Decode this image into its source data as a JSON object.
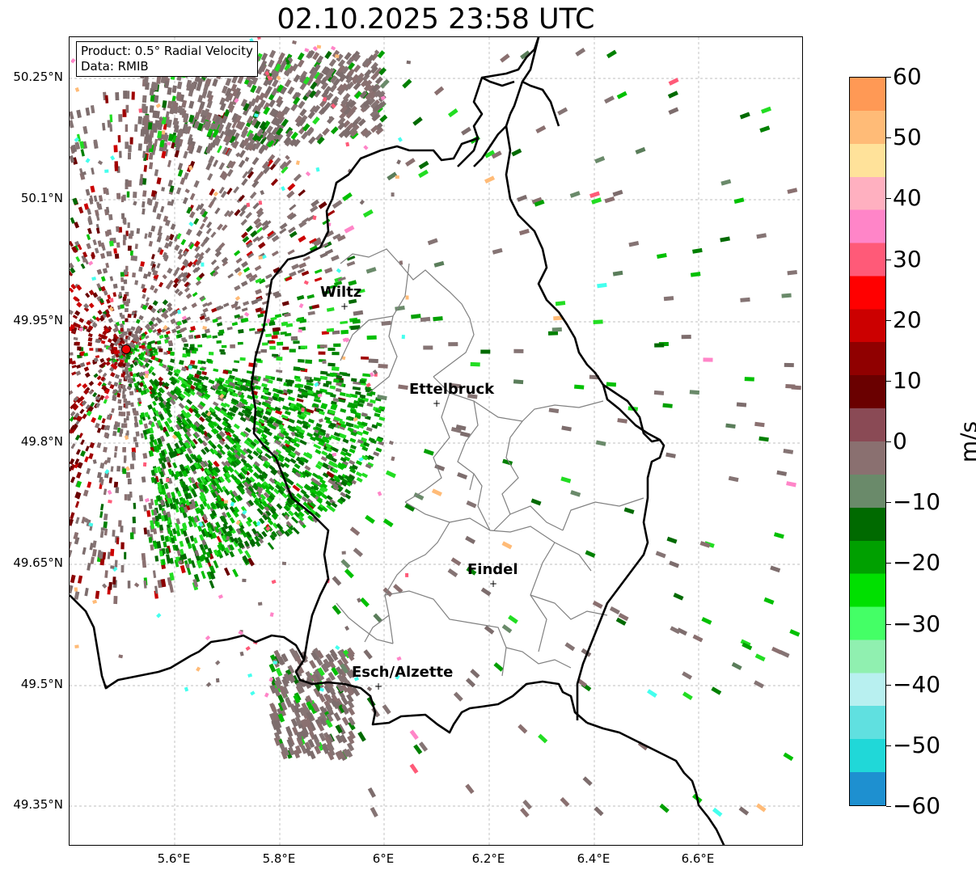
{
  "title": "02.10.2025 23:58 UTC",
  "info": {
    "product": "Product: 0.5° Radial Velocity",
    "data": "Data: RMIB"
  },
  "lat_labels": [
    "50.25°N",
    "50.1°N",
    "49.95°N",
    "49.8°N",
    "49.65°N",
    "49.5°N",
    "49.35°N"
  ],
  "lon_labels": [
    "5.6°E",
    "5.8°E",
    "6°E",
    "6.2°E",
    "6.4°E",
    "6.6°E"
  ],
  "cities": [
    {
      "name": "Wiltz"
    },
    {
      "name": "Ettelbruck"
    },
    {
      "name": "Findel"
    },
    {
      "name": "Esch/Alzette"
    }
  ],
  "colorbar": {
    "label": "m/s",
    "ticks": [
      "60",
      "50",
      "40",
      "30",
      "20",
      "10",
      "0",
      "−10",
      "−20",
      "−30",
      "−40",
      "−50",
      "−60"
    ],
    "min": -60,
    "max": 60,
    "colors": [
      "#ff9955",
      "#ffbb77",
      "#ffe29a",
      "#ffb0c0",
      "#ff85c8",
      "#ff5a78",
      "#ff0000",
      "#cc0000",
      "#900000",
      "#6a0000",
      "#8a4a55",
      "#8a7070",
      "#6a8a6a",
      "#006a00",
      "#00a000",
      "#00e000",
      "#44ff66",
      "#90f0b0",
      "#b8f0f0",
      "#60e0e0",
      "#20d8d8",
      "#1e90d0"
    ]
  },
  "radar_site": {
    "lat": 49.914,
    "lon": 5.505
  }
}
